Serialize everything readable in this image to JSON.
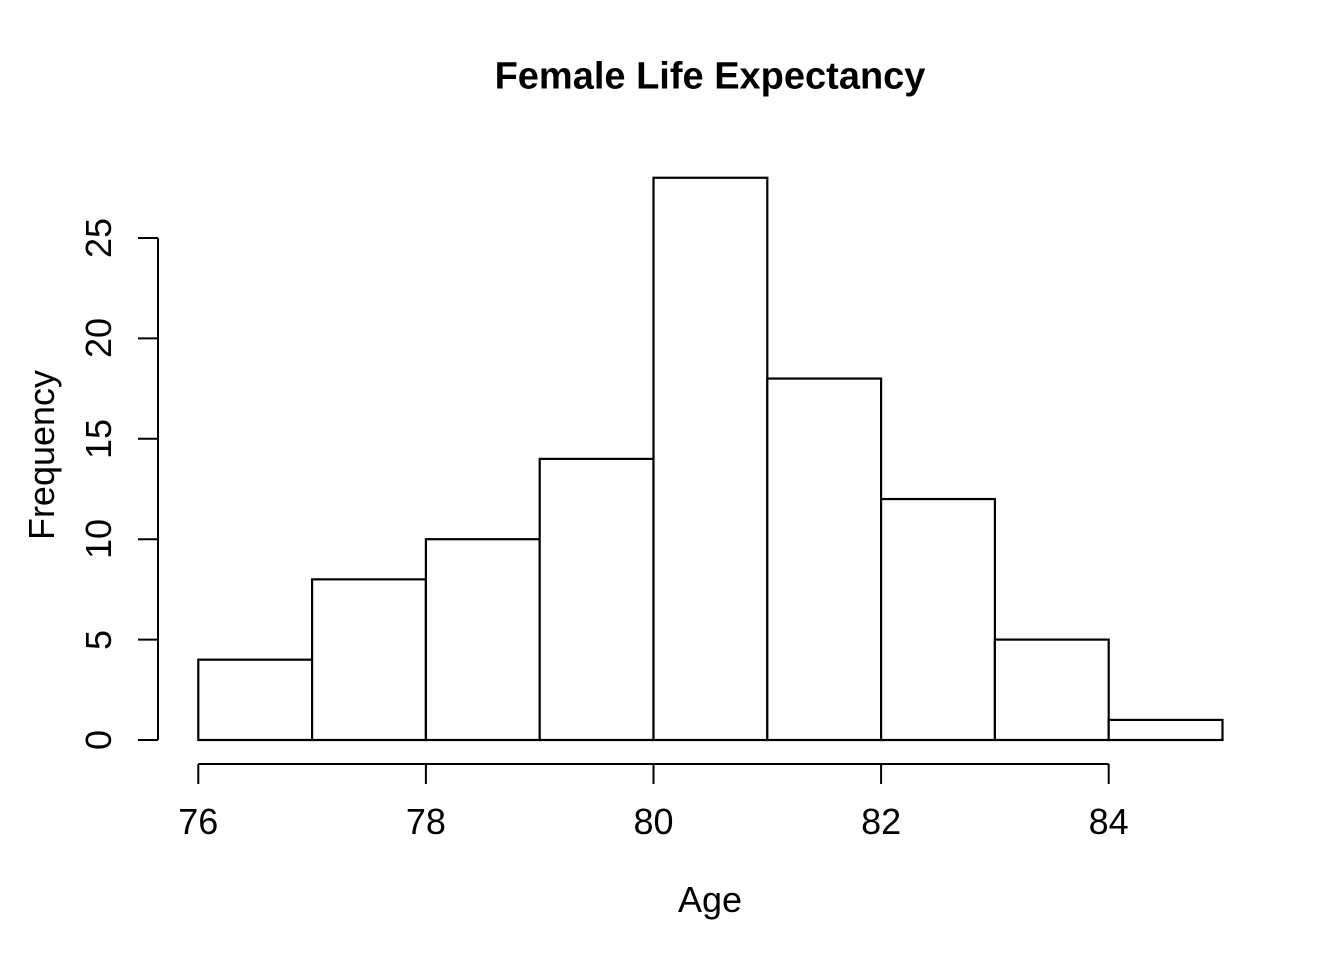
{
  "chart_data": {
    "type": "bar",
    "chart_style": "histogram",
    "title": "Female Life Expectancy",
    "xlabel": "Age",
    "ylabel": "Frequency",
    "bin_edges": [
      76,
      77,
      78,
      79,
      80,
      81,
      82,
      83,
      84,
      85
    ],
    "counts": [
      4,
      8,
      10,
      14,
      28,
      18,
      12,
      5,
      1
    ],
    "x_ticks": [
      76,
      78,
      80,
      82,
      84
    ],
    "y_ticks": [
      0,
      5,
      10,
      15,
      20,
      25
    ],
    "xlim": [
      76,
      85
    ],
    "ylim": [
      0,
      28
    ],
    "grid": false,
    "legend": "none",
    "bar_fill": "#ffffff",
    "bar_stroke": "#000000",
    "axis_color": "#000000",
    "text_color": "#000000",
    "background": "#ffffff"
  }
}
